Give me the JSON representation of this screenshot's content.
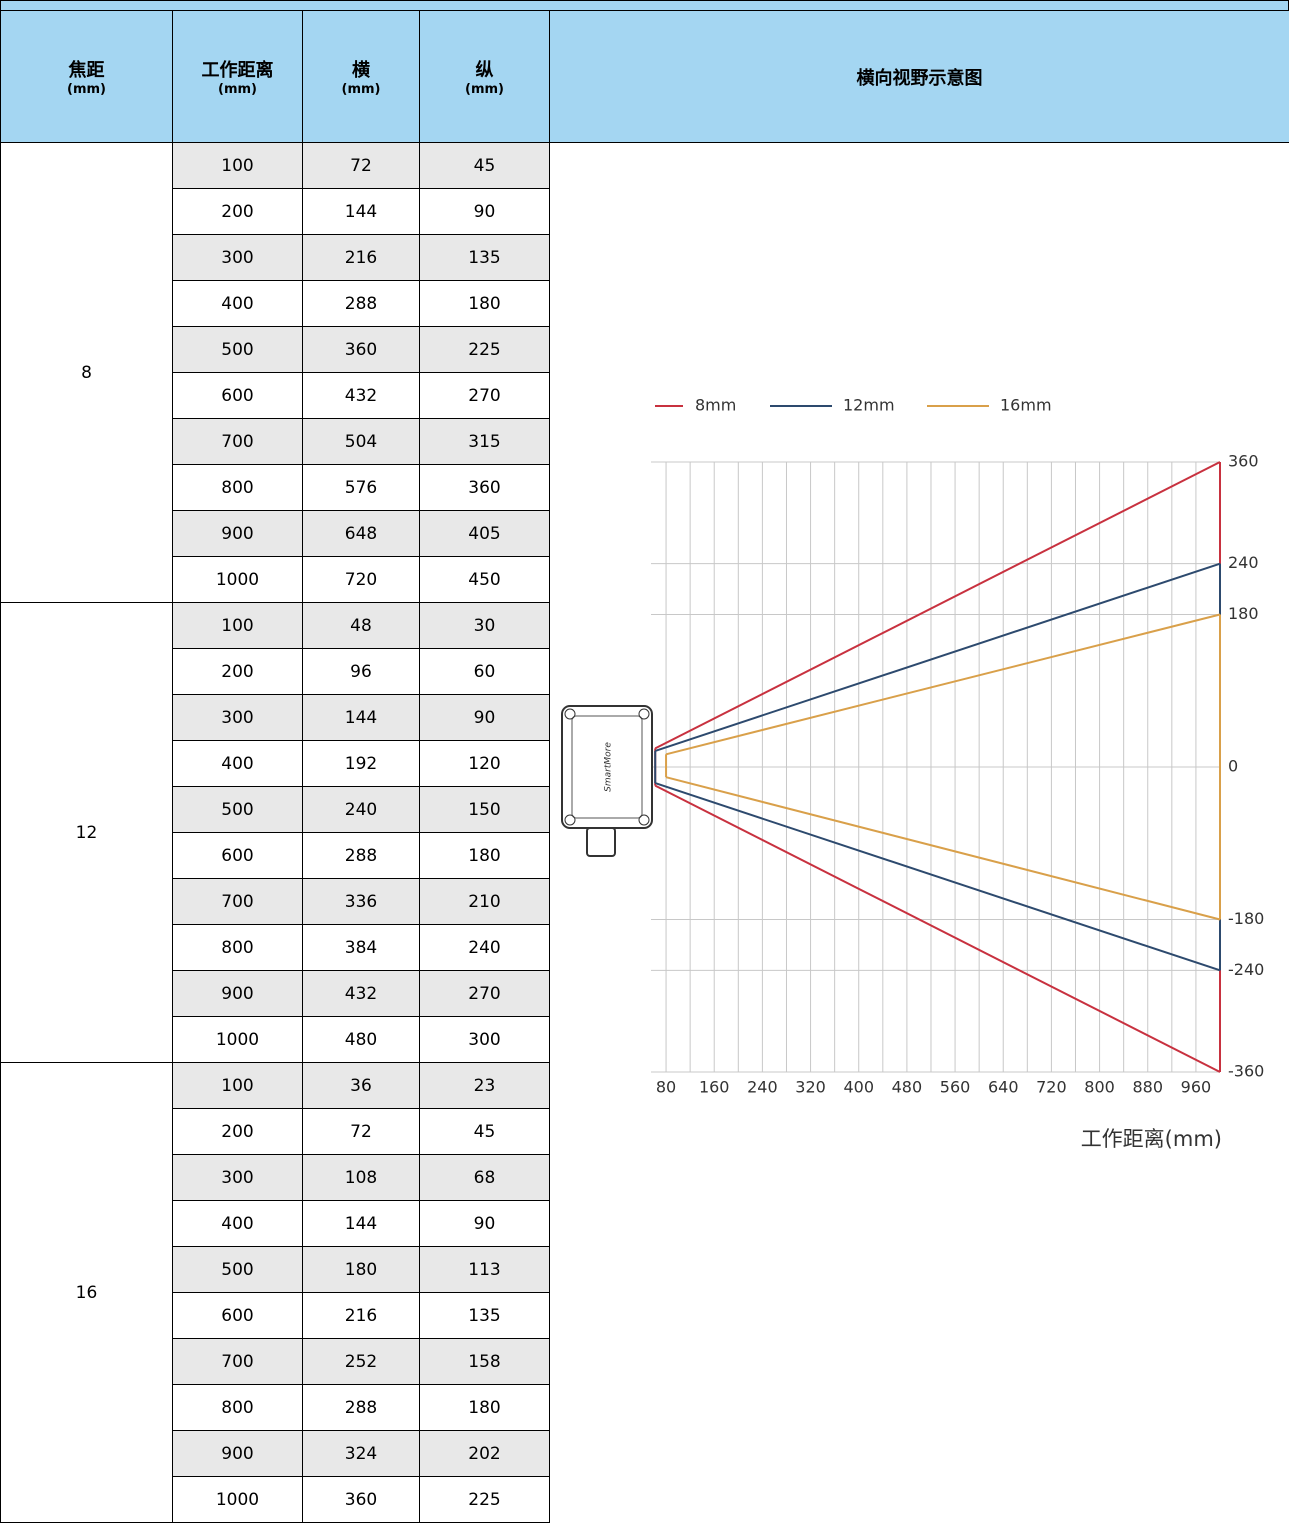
{
  "table": {
    "headers": [
      {
        "title": "焦距",
        "unit": "(mm)"
      },
      {
        "title": "工作距离",
        "unit": "(mm)"
      },
      {
        "title": "横",
        "unit": "(mm)"
      },
      {
        "title": "纵",
        "unit": "(mm)"
      },
      {
        "title": "横向视野示意图"
      }
    ],
    "groups": [
      {
        "focal": 8,
        "rows": [
          [
            100,
            72,
            45
          ],
          [
            200,
            144,
            90
          ],
          [
            300,
            216,
            135
          ],
          [
            400,
            288,
            180
          ],
          [
            500,
            360,
            225
          ],
          [
            600,
            432,
            270
          ],
          [
            700,
            504,
            315
          ],
          [
            800,
            576,
            360
          ],
          [
            900,
            648,
            405
          ],
          [
            1000,
            720,
            450
          ]
        ]
      },
      {
        "focal": 12,
        "rows": [
          [
            100,
            48,
            30
          ],
          [
            200,
            96,
            60
          ],
          [
            300,
            144,
            90
          ],
          [
            400,
            192,
            120
          ],
          [
            500,
            240,
            150
          ],
          [
            600,
            288,
            180
          ],
          [
            700,
            336,
            210
          ],
          [
            800,
            384,
            240
          ],
          [
            900,
            432,
            270
          ],
          [
            1000,
            480,
            300
          ]
        ]
      },
      {
        "focal": 16,
        "rows": [
          [
            100,
            36,
            23
          ],
          [
            200,
            72,
            45
          ],
          [
            300,
            108,
            68
          ],
          [
            400,
            144,
            90
          ],
          [
            500,
            180,
            113
          ],
          [
            600,
            216,
            135
          ],
          [
            700,
            252,
            158
          ],
          [
            800,
            288,
            180
          ],
          [
            900,
            324,
            202
          ],
          [
            1000,
            360,
            225
          ]
        ]
      }
    ]
  },
  "chart_data": {
    "type": "cone",
    "device_label": "SmartMore",
    "x_label": "工作距离(mm)",
    "xlim": [
      55,
      1000
    ],
    "ylim": [
      -360,
      360
    ],
    "xticks": [
      80,
      160,
      240,
      320,
      400,
      480,
      560,
      640,
      720,
      800,
      880,
      960
    ],
    "yticks": [
      360,
      240,
      180,
      0,
      -180,
      -240,
      -360
    ],
    "grid": true,
    "series": [
      {
        "name": "8mm",
        "color": "#c8313f",
        "x": [
          62,
          1000
        ],
        "upper": [
          22,
          360
        ],
        "lower": [
          -22,
          -360
        ]
      },
      {
        "name": "12mm",
        "color": "#2d4a6e",
        "x": [
          62,
          1000
        ],
        "upper": [
          19,
          240
        ],
        "lower": [
          -19,
          -240
        ]
      },
      {
        "name": "16mm",
        "color": "#d9a04a",
        "x": [
          80,
          1000
        ],
        "upper": [
          15,
          180
        ],
        "lower": [
          -12,
          -180
        ]
      }
    ]
  }
}
